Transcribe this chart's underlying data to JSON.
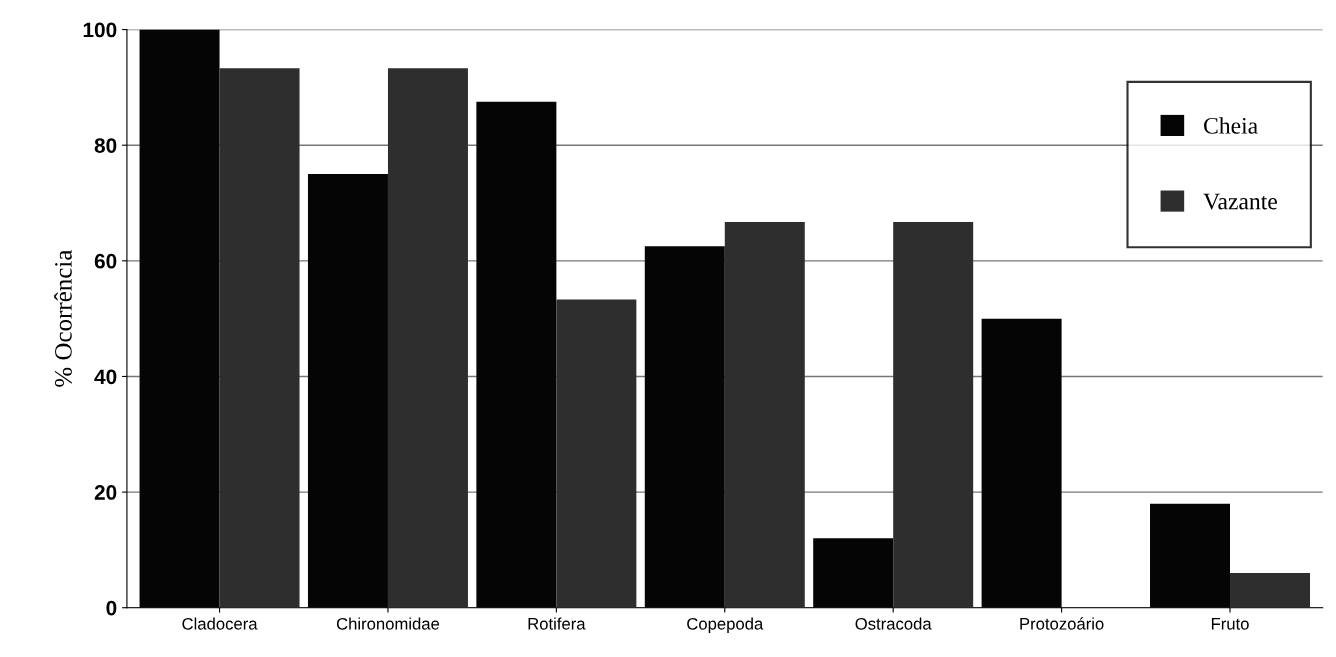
{
  "chart_data": {
    "type": "bar",
    "ylabel": "% Ocorrência",
    "categories": [
      "Cladocera",
      "Chironomidae",
      "Rotifera",
      "Copepoda",
      "Ostracoda",
      "Protozoário",
      "Fruto"
    ],
    "series": [
      {
        "name": "Cheia",
        "color": "#050505",
        "values": [
          100,
          75,
          87.5,
          62.5,
          12,
          50,
          18
        ]
      },
      {
        "name": "Vazante",
        "color": "#2e2e2e",
        "values": [
          93.3,
          93.3,
          53.3,
          66.7,
          66.7,
          0,
          6
        ]
      }
    ],
    "ylim": [
      0,
      100
    ],
    "yticks": [
      0,
      20,
      40,
      60,
      80,
      100
    ],
    "grid": "y",
    "legend": "top right"
  }
}
